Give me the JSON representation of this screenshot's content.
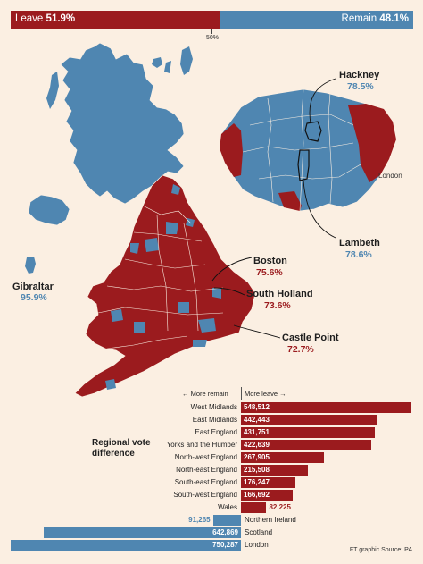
{
  "result_bar": {
    "leave_label": "Leave",
    "leave_pct": "51.9%",
    "leave_value": 51.9,
    "remain_label": "Remain",
    "remain_pct": "48.1%",
    "remain_value": 48.1,
    "midpoint_label": "50%"
  },
  "colors": {
    "leave": "#9b1b1e",
    "remain": "#4f86b1",
    "background": "#fbefe2"
  },
  "callouts": {
    "hackney": {
      "name": "Hackney",
      "pct": "78.5%"
    },
    "lambeth": {
      "name": "Lambeth",
      "pct": "78.6%"
    },
    "gibraltar": {
      "name": "Gibraltar",
      "pct": "95.9%"
    },
    "boston": {
      "name": "Boston",
      "pct": "75.6%"
    },
    "south_holland": {
      "name": "South Holland",
      "pct": "73.6%"
    },
    "castle_point": {
      "name": "Castle Point",
      "pct": "72.7%"
    },
    "london_inset_label": "London"
  },
  "chart_data": {
    "type": "bar",
    "title": "Regional vote difference",
    "axis_left_label": "← More remain",
    "axis_right_label": "More leave →",
    "categories": [
      "West Midlands",
      "East Midlands",
      "East England",
      "Yorks and the Humber",
      "North-west England",
      "North-east England",
      "South-east England",
      "South-west England",
      "Wales",
      "Northern Ireland",
      "Scotland",
      "London"
    ],
    "values": [
      548512,
      442443,
      431751,
      422639,
      267905,
      215508,
      176247,
      166692,
      82225,
      -91265,
      -642869,
      -750287
    ],
    "value_labels": [
      "548,512",
      "442,443",
      "431,751",
      "422,639",
      "267,905",
      "215,508",
      "176,247",
      "166,692",
      "82,225",
      "91,265",
      "642,869",
      "750,287"
    ]
  },
  "footer": "FT graphic  Source: PA"
}
